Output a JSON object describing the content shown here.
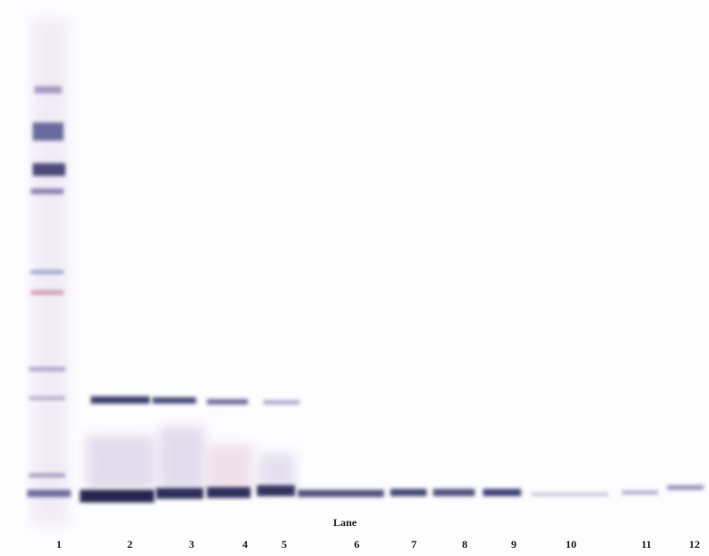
{
  "blot": {
    "axis_label": "Lane",
    "lanes": [
      "1",
      "2",
      "3",
      "4",
      "5",
      "6",
      "7",
      "8",
      "9",
      "10",
      "11",
      "12"
    ]
  }
}
